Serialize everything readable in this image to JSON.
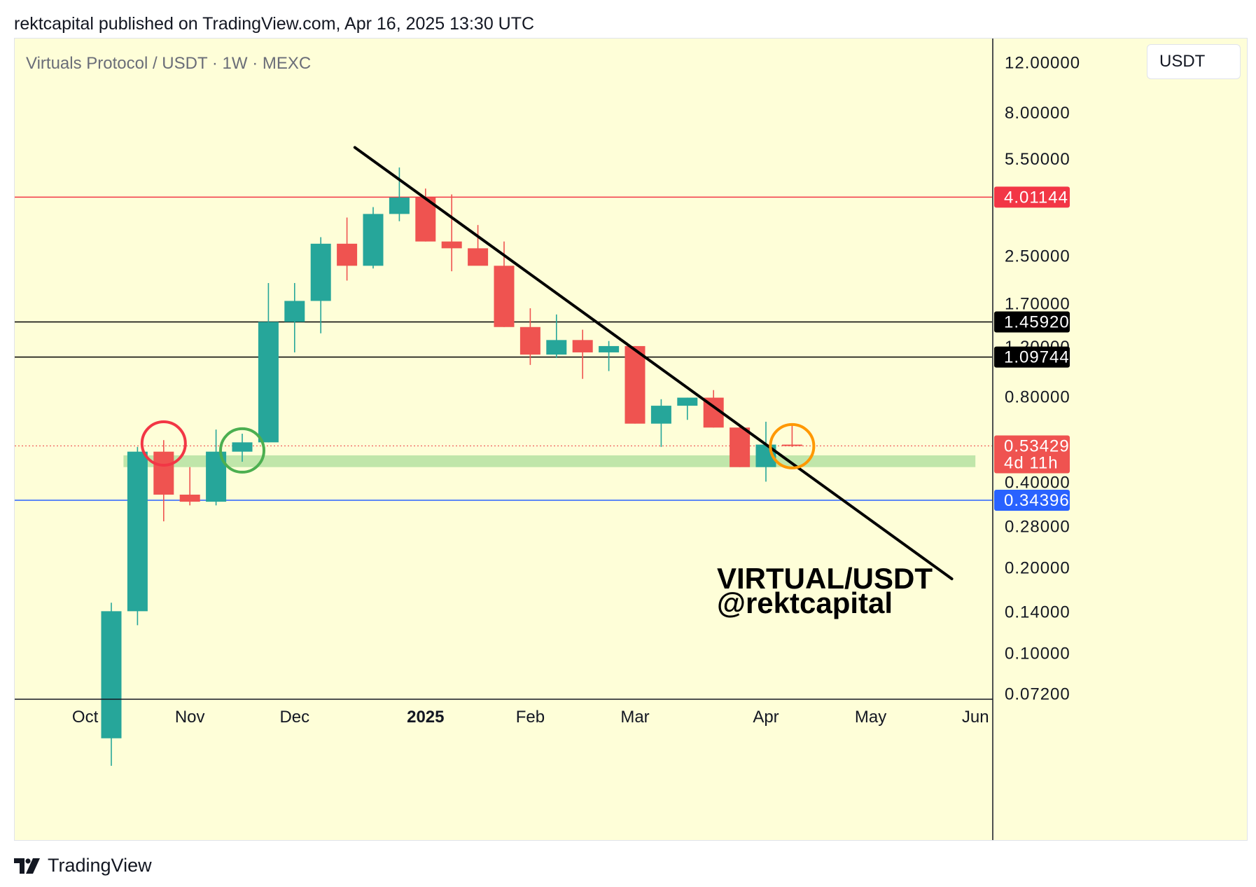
{
  "header": {
    "published": "rektcapital published on TradingView.com, Apr 16, 2025 13:30 UTC"
  },
  "chart": {
    "symbol": "Virtuals Protocol / USDT · 1W · MEXC",
    "currency": "USDT",
    "watermark_line1": "VIRTUAL/USDT",
    "watermark_line2": "@rektcapital",
    "countdown": "4d 11h"
  },
  "footer": {
    "brand": "TradingView"
  },
  "colors": {
    "up": "#26a69a",
    "down": "#ef5350",
    "resistance": "#f23645",
    "support": "#2962ff",
    "level": "#000000",
    "zone": "#bde5a8",
    "circle_red": "#f23645",
    "circle_green": "#4caf50",
    "circle_orange": "#ff9800"
  },
  "chart_data": {
    "type": "candlestick",
    "scale": "log",
    "timeframe": "1W",
    "ylim": [
      0.069,
      14.5
    ],
    "y_ticks": [
      "12.00000",
      "8.00000",
      "5.50000",
      "2.50000",
      "1.70000",
      "1.20000",
      "0.80000",
      "0.40000",
      "0.28000",
      "0.20000",
      "0.14000",
      "0.10000",
      "0.07200"
    ],
    "x_ticks": [
      {
        "label": "Oct",
        "week": -1.0
      },
      {
        "label": "Nov",
        "week": 3.0
      },
      {
        "label": "Dec",
        "week": 7.0
      },
      {
        "label": "2025",
        "week": 12.0,
        "bold": true
      },
      {
        "label": "Feb",
        "week": 16.0
      },
      {
        "label": "Mar",
        "week": 20.0
      },
      {
        "label": "Apr",
        "week": 25.0
      },
      {
        "label": "May",
        "week": 29.0
      },
      {
        "label": "Jun",
        "week": 33.0
      }
    ],
    "candles": [
      {
        "week": 0,
        "o": 0.05,
        "h": 0.15,
        "l": 0.04,
        "c": 0.14
      },
      {
        "week": 1,
        "o": 0.14,
        "h": 0.53,
        "l": 0.125,
        "c": 0.51
      },
      {
        "week": 2,
        "o": 0.51,
        "h": 0.56,
        "l": 0.29,
        "c": 0.36
      },
      {
        "week": 3,
        "o": 0.36,
        "h": 0.45,
        "l": 0.33,
        "c": 0.34
      },
      {
        "week": 4,
        "o": 0.34,
        "h": 0.61,
        "l": 0.33,
        "c": 0.51
      },
      {
        "week": 5,
        "o": 0.51,
        "h": 0.59,
        "l": 0.47,
        "c": 0.55
      },
      {
        "week": 6,
        "o": 0.55,
        "h": 2.0,
        "l": 0.55,
        "c": 1.46
      },
      {
        "week": 7,
        "o": 1.46,
        "h": 2.0,
        "l": 1.14,
        "c": 1.73
      },
      {
        "week": 8,
        "o": 1.73,
        "h": 2.9,
        "l": 1.33,
        "c": 2.75
      },
      {
        "week": 9,
        "o": 2.75,
        "h": 3.4,
        "l": 2.04,
        "c": 2.3
      },
      {
        "week": 10,
        "o": 2.3,
        "h": 3.7,
        "l": 2.25,
        "c": 3.5
      },
      {
        "week": 11,
        "o": 3.5,
        "h": 5.1,
        "l": 3.3,
        "c": 4.0
      },
      {
        "week": 12,
        "o": 4.0,
        "h": 4.3,
        "l": 2.8,
        "c": 2.8
      },
      {
        "week": 13,
        "o": 2.8,
        "h": 4.1,
        "l": 2.2,
        "c": 2.65
      },
      {
        "week": 14,
        "o": 2.65,
        "h": 3.2,
        "l": 2.35,
        "c": 2.3
      },
      {
        "week": 15,
        "o": 2.3,
        "h": 2.8,
        "l": 1.4,
        "c": 1.4
      },
      {
        "week": 16,
        "o": 1.4,
        "h": 1.63,
        "l": 1.03,
        "c": 1.12
      },
      {
        "week": 17,
        "o": 1.12,
        "h": 1.55,
        "l": 1.09,
        "c": 1.26
      },
      {
        "week": 18,
        "o": 1.26,
        "h": 1.37,
        "l": 0.92,
        "c": 1.14
      },
      {
        "week": 19,
        "o": 1.14,
        "h": 1.25,
        "l": 0.98,
        "c": 1.2
      },
      {
        "week": 20,
        "o": 1.2,
        "h": 1.2,
        "l": 0.64,
        "c": 0.64
      },
      {
        "week": 21,
        "o": 0.64,
        "h": 0.78,
        "l": 0.53,
        "c": 0.74
      },
      {
        "week": 22,
        "o": 0.74,
        "h": 0.79,
        "l": 0.66,
        "c": 0.79
      },
      {
        "week": 23,
        "o": 0.79,
        "h": 0.84,
        "l": 0.62,
        "c": 0.62
      },
      {
        "week": 24,
        "o": 0.62,
        "h": 0.63,
        "l": 0.45,
        "c": 0.45
      },
      {
        "week": 25,
        "o": 0.45,
        "h": 0.65,
        "l": 0.4,
        "c": 0.54
      },
      {
        "week": 26,
        "o": 0.54,
        "h": 0.64,
        "l": 0.53,
        "c": 0.534
      }
    ],
    "levels": [
      {
        "value": 4.01144,
        "label": "4.01144",
        "color": "#f23645",
        "kind": "resistance"
      },
      {
        "value": 1.4592,
        "label": "1.45920",
        "color": "#000000",
        "kind": "level"
      },
      {
        "value": 1.09744,
        "label": "1.09744",
        "color": "#000000",
        "kind": "level"
      },
      {
        "value": 0.34396,
        "label": "0.34396",
        "color": "#2962ff",
        "kind": "support"
      }
    ],
    "last_price": {
      "value": 0.53429,
      "label": "0.53429",
      "color": "#ef5350"
    },
    "zone": {
      "from_week": 1.0,
      "to_week": 33.0,
      "low": 0.45,
      "high": 0.495
    },
    "trendline": {
      "from": {
        "week": 9.3,
        "value": 6.0
      },
      "to": {
        "week": 32.1,
        "value": 0.182
      }
    },
    "circles": [
      {
        "week": 2.0,
        "value": 0.545,
        "color": "#f23645"
      },
      {
        "week": 5.0,
        "value": 0.515,
        "color": "#4caf50"
      },
      {
        "week": 26.0,
        "value": 0.533,
        "color": "#ff9800"
      }
    ]
  }
}
